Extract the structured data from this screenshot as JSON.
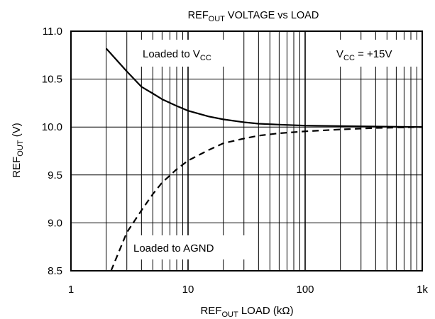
{
  "chart_data": {
    "type": "line",
    "title": {
      "main": "REF",
      "sub": "OUT",
      "rest": " VOLTAGE vs LOAD"
    },
    "xlabel": {
      "main": "REF",
      "sub": "OUT",
      "rest": " LOAD (kΩ)"
    },
    "ylabel": {
      "main": "REF",
      "sub": "OUT",
      "rest": " (V)"
    },
    "x_scale": "log",
    "xlim": [
      1,
      1000
    ],
    "ylim": [
      8.5,
      11.0
    ],
    "x_ticks": [
      {
        "value": 1,
        "label": "1"
      },
      {
        "value": 10,
        "label": "10"
      },
      {
        "value": 100,
        "label": "100"
      },
      {
        "value": 1000,
        "label": "1k"
      }
    ],
    "y_ticks": [
      {
        "value": 11.0,
        "label": "11.0"
      },
      {
        "value": 10.5,
        "label": "10.5"
      },
      {
        "value": 10.0,
        "label": "10.0"
      },
      {
        "value": 9.5,
        "label": "9.5"
      },
      {
        "value": 9.0,
        "label": "9.0"
      },
      {
        "value": 8.5,
        "label": "8.5"
      }
    ],
    "grid": true,
    "series": [
      {
        "line_style": "solid",
        "x": [
          2,
          3,
          4,
          5,
          6,
          8,
          10,
          15,
          20,
          30,
          40,
          60,
          100,
          200,
          400,
          1000
        ],
        "y": [
          10.82,
          10.58,
          10.42,
          10.35,
          10.29,
          10.22,
          10.17,
          10.11,
          10.08,
          10.05,
          10.035,
          10.025,
          10.015,
          10.01,
          10.005,
          10.0
        ]
      },
      {
        "line_style": "dashed",
        "x": [
          2.2,
          3,
          4,
          5,
          6,
          8,
          10,
          15,
          20,
          30,
          40,
          60,
          100,
          200,
          400,
          1000
        ],
        "y": [
          8.5,
          8.9,
          9.13,
          9.3,
          9.42,
          9.56,
          9.65,
          9.76,
          9.83,
          9.88,
          9.91,
          9.935,
          9.955,
          9.975,
          9.99,
          10.0
        ]
      }
    ],
    "annotations": [
      {
        "id": "loaded-vcc",
        "main": "Loaded to V",
        "sub": "CC",
        "rest": ""
      },
      {
        "id": "vcc-condition",
        "main": "V",
        "sub": "CC",
        "rest": " = +15V"
      },
      {
        "id": "loaded-agnd",
        "main": "Loaded to AGND",
        "sub": "",
        "rest": ""
      }
    ]
  }
}
